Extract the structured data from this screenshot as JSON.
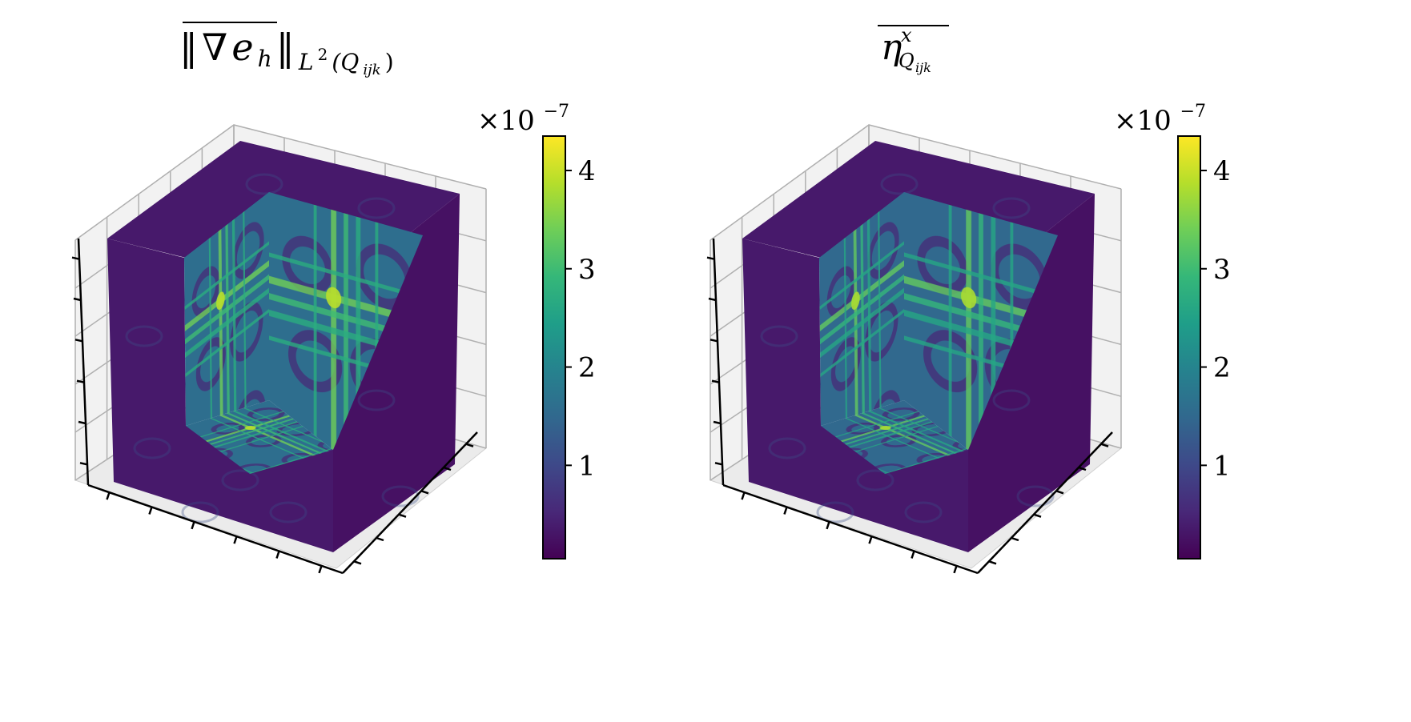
{
  "figure": {
    "colormap": "viridis",
    "colormap_stops": [
      "#440154",
      "#482878",
      "#3e4989",
      "#31688e",
      "#26828e",
      "#1f9e89",
      "#35b779",
      "#6ece58",
      "#b5de2b",
      "#fde725"
    ],
    "axis_line_color": "#000000",
    "pane_color": "#f2f2f2",
    "grid_color": "#b0b0b0"
  },
  "chart_data": [
    {
      "type": "heatmap",
      "plot_kind": "3d voxel cube (octant cut-away)",
      "title_math": {
        "norm_open": "‖",
        "nabla": "∇",
        "var": "e",
        "var_sub": "h",
        "norm_close": "‖",
        "space": "L",
        "space_sup": "2",
        "domain": "(Q",
        "domain_sub": "ijk",
        "domain_close": ")"
      },
      "colorbar": {
        "multiplier_base": "×10",
        "multiplier_exp": "−7",
        "range": [
          0.05,
          4.35
        ],
        "ticks": [
          1,
          2,
          3,
          4
        ],
        "tick_labels": [
          "1",
          "2",
          "3",
          "4"
        ]
      },
      "tick_marks": {
        "x": 6,
        "y": 6,
        "z": 6
      },
      "inner_face_pattern": {
        "background_level": 1.6,
        "stripe_levels": [
          3.4,
          3.0,
          2.7
        ],
        "cross_center_level": 3.9,
        "outer_face_level": 0.35
      }
    },
    {
      "type": "heatmap",
      "plot_kind": "3d voxel cube (octant cut-away)",
      "title_math": {
        "symbol": "η",
        "symbol_sup": "x",
        "symbol_sub": "Q",
        "symbol_sub_sub": "ijk"
      },
      "colorbar": {
        "multiplier_base": "×10",
        "multiplier_exp": "−7",
        "range": [
          0.05,
          4.35
        ],
        "ticks": [
          1,
          2,
          3,
          4
        ],
        "tick_labels": [
          "1",
          "2",
          "3",
          "4"
        ]
      },
      "tick_marks": {
        "x": 6,
        "y": 6,
        "z": 6
      },
      "inner_face_pattern": {
        "background_level": 1.5,
        "stripe_levels": [
          3.3,
          2.9,
          2.6
        ],
        "cross_center_level": 3.8,
        "outer_face_level": 0.35
      }
    }
  ]
}
